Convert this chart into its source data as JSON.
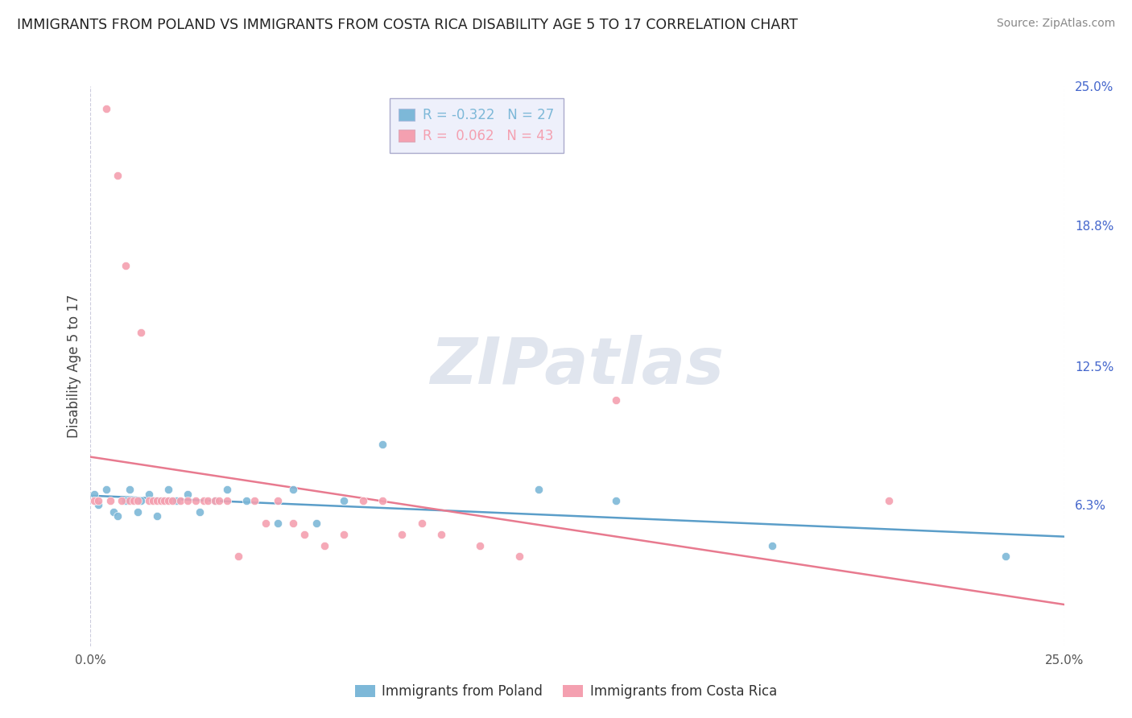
{
  "title": "IMMIGRANTS FROM POLAND VS IMMIGRANTS FROM COSTA RICA DISABILITY AGE 5 TO 17 CORRELATION CHART",
  "source": "Source: ZipAtlas.com",
  "ylabel": "Disability Age 5 to 17",
  "xlim": [
    0.0,
    0.25
  ],
  "ylim": [
    0.0,
    0.25
  ],
  "ytick_labels_right": [
    "25.0%",
    "18.8%",
    "12.5%",
    "6.3%"
  ],
  "ytick_positions_right": [
    0.25,
    0.188,
    0.125,
    0.063
  ],
  "poland_color": "#7db8d8",
  "costa_rica_color": "#f4a0b0",
  "poland_line_color": "#5b9ec9",
  "costa_rica_line_color": "#e87a8f",
  "poland_R": -0.322,
  "poland_N": 27,
  "costa_rica_R": 0.062,
  "costa_rica_N": 43,
  "poland_scatter_x": [
    0.001,
    0.002,
    0.004,
    0.006,
    0.007,
    0.009,
    0.01,
    0.012,
    0.013,
    0.015,
    0.017,
    0.02,
    0.022,
    0.025,
    0.028,
    0.032,
    0.035,
    0.04,
    0.048,
    0.052,
    0.058,
    0.065,
    0.075,
    0.115,
    0.135,
    0.175,
    0.235
  ],
  "poland_scatter_y": [
    0.068,
    0.063,
    0.07,
    0.06,
    0.058,
    0.065,
    0.07,
    0.06,
    0.065,
    0.068,
    0.058,
    0.07,
    0.065,
    0.068,
    0.06,
    0.065,
    0.07,
    0.065,
    0.055,
    0.07,
    0.055,
    0.065,
    0.09,
    0.07,
    0.065,
    0.045,
    0.04
  ],
  "costa_rica_scatter_x": [
    0.001,
    0.002,
    0.004,
    0.005,
    0.007,
    0.008,
    0.009,
    0.01,
    0.011,
    0.012,
    0.013,
    0.015,
    0.016,
    0.017,
    0.018,
    0.019,
    0.02,
    0.021,
    0.023,
    0.025,
    0.027,
    0.029,
    0.03,
    0.032,
    0.033,
    0.035,
    0.038,
    0.042,
    0.045,
    0.048,
    0.052,
    0.055,
    0.06,
    0.065,
    0.07,
    0.075,
    0.08,
    0.085,
    0.09,
    0.1,
    0.11,
    0.135,
    0.205
  ],
  "costa_rica_scatter_y": [
    0.065,
    0.065,
    0.24,
    0.065,
    0.21,
    0.065,
    0.17,
    0.065,
    0.065,
    0.065,
    0.14,
    0.065,
    0.065,
    0.065,
    0.065,
    0.065,
    0.065,
    0.065,
    0.065,
    0.065,
    0.065,
    0.065,
    0.065,
    0.065,
    0.065,
    0.065,
    0.04,
    0.065,
    0.055,
    0.065,
    0.055,
    0.05,
    0.045,
    0.05,
    0.065,
    0.065,
    0.05,
    0.055,
    0.05,
    0.045,
    0.04,
    0.11,
    0.065
  ],
  "watermark_text": "ZIPatlas",
  "background_color": "#ffffff",
  "grid_color": "#ccccdd",
  "legend_facecolor": "#eef0fb",
  "legend_edgecolor": "#aaaacc"
}
